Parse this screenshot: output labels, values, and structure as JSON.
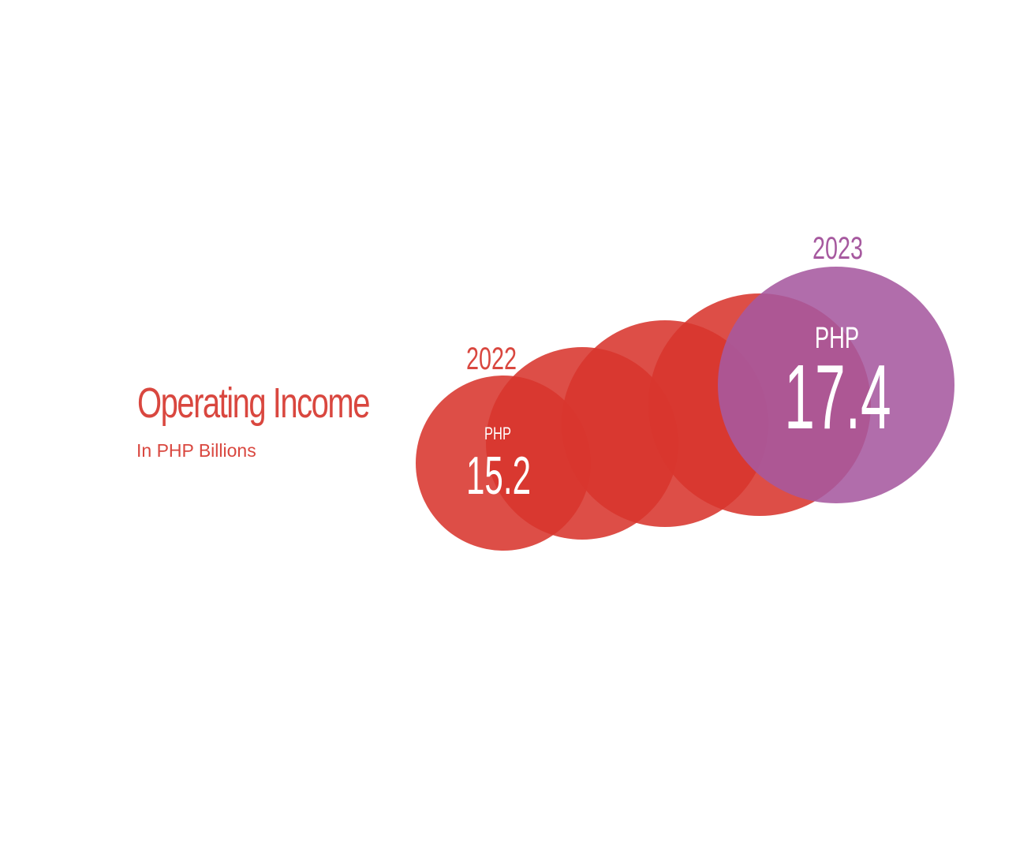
{
  "title": "Operating Income",
  "subtitle": "In PHP Billions",
  "colors": {
    "accent": "#d9473f",
    "bubble_red": "#d8352d",
    "bubble_purple": "#a6599f",
    "text_on_bubble": "#ffffff"
  },
  "chart_data": {
    "type": "bubble",
    "title": "Operating Income",
    "subtitle": "In PHP Billions",
    "unit": "PHP Billions",
    "points": [
      {
        "year": "2022",
        "currency": "PHP",
        "value": "15.2",
        "amount": 15.2,
        "color": "#d8352d"
      },
      {
        "year": "",
        "currency": "",
        "value": "",
        "amount": null,
        "color": "#d8352d"
      },
      {
        "year": "",
        "currency": "",
        "value": "",
        "amount": null,
        "color": "#d8352d"
      },
      {
        "year": "",
        "currency": "",
        "value": "",
        "amount": null,
        "color": "#d8352d"
      },
      {
        "year": "2023",
        "currency": "PHP",
        "value": "17.4",
        "amount": 17.4,
        "color": "#a6599f"
      }
    ]
  }
}
